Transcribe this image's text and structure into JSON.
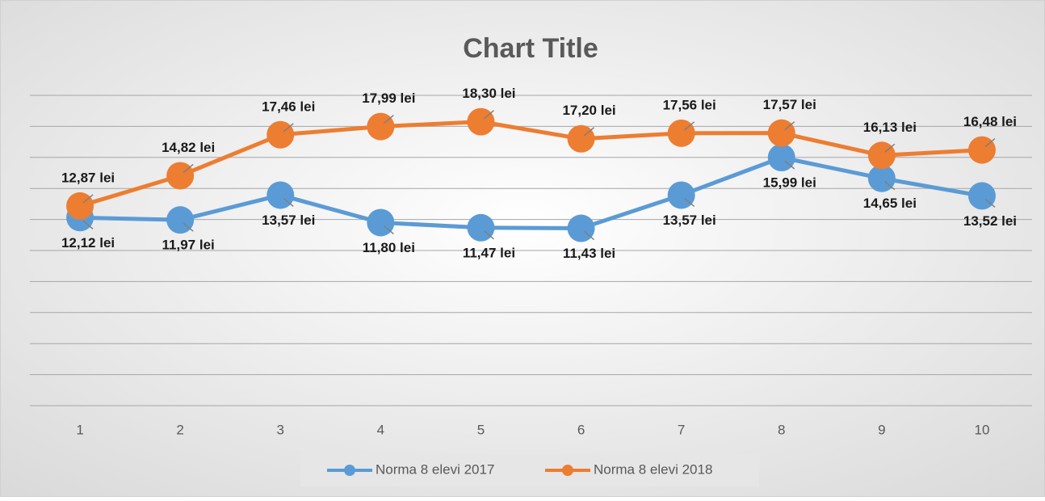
{
  "chart_data": {
    "type": "line",
    "title": "Chart Title",
    "categories": [
      "1",
      "2",
      "3",
      "4",
      "5",
      "6",
      "7",
      "8",
      "9",
      "10"
    ],
    "series": [
      {
        "name": "Norma 8 elevi 2017",
        "color": "#5b9bd5",
        "values": [
          12.12,
          11.97,
          13.57,
          11.8,
          11.47,
          11.43,
          13.57,
          15.99,
          14.65,
          13.52
        ],
        "value_labels": [
          "12,12 lei",
          "11,97 lei",
          "13,57 lei",
          "11,80 lei",
          "11,47 lei",
          "11,43 lei",
          "13,57 lei",
          "15,99 lei",
          "14,65 lei",
          "13,52 lei"
        ]
      },
      {
        "name": "Norma 8 elevi 2018",
        "color": "#ed7d31",
        "values": [
          12.87,
          14.82,
          17.46,
          17.99,
          18.3,
          17.2,
          17.56,
          17.57,
          16.13,
          16.48
        ],
        "value_labels": [
          "12,87 lei",
          "14,82 lei",
          "17,46 lei",
          "17,99 lei",
          "18,30 lei",
          "17,20 lei",
          "17,56 lei",
          "17,57 lei",
          "16,13 lei",
          "16,48 lei"
        ]
      }
    ],
    "ylim": [
      0,
      20
    ],
    "yticks": [
      0,
      2,
      4,
      6,
      8,
      10,
      12,
      14,
      16,
      18,
      20
    ],
    "grid": true,
    "legend": "bottom"
  }
}
